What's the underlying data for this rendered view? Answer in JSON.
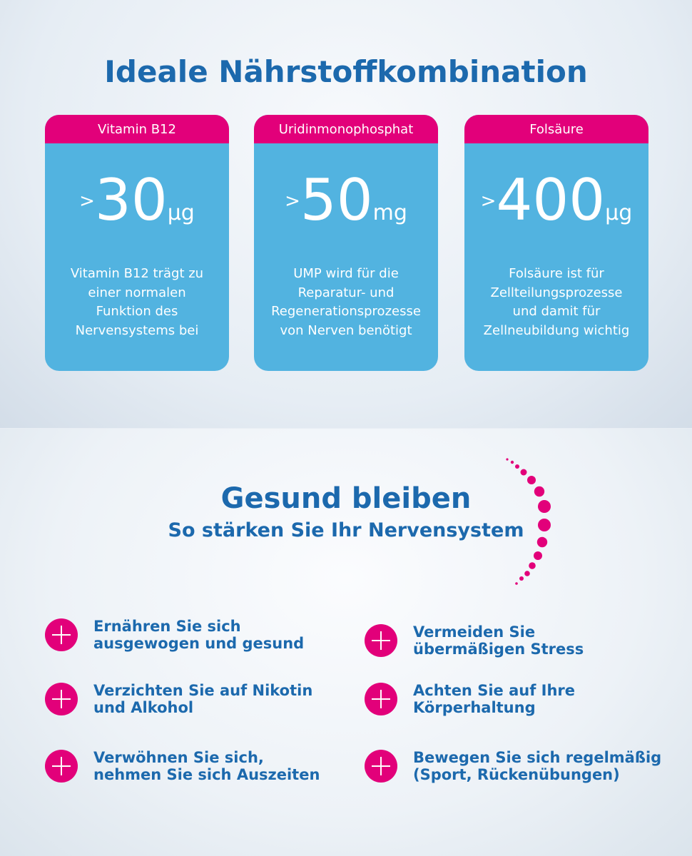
{
  "section1": {
    "title": "Ideale Nährstoffkombination",
    "cards": [
      {
        "header": "Vitamin B12",
        "prefix": ">",
        "value": "30",
        "unit": "µg",
        "desc": "Vitamin B12 trägt zu einer normalen Funktion des Nervensystems bei"
      },
      {
        "header": "Uridinmonophosphat",
        "prefix": ">",
        "value": "50",
        "unit": "mg",
        "desc": "UMP wird für die Reparatur- und Regenerationsprozesse von Nerven benötigt"
      },
      {
        "header": "Folsäure",
        "prefix": ">",
        "value": "400",
        "unit": "µg",
        "desc": "Folsäure ist für Zellteilungsprozesse und damit für Zellneubildung wichtig"
      }
    ]
  },
  "section2": {
    "title": "Gesund bleiben",
    "subtitle": "So stärken Sie Ihr Nervensystem",
    "tips": [
      "Ernähren Sie sich ausgewogen und gesund",
      "Vermeiden Sie übermäßigen Stress",
      "Verzichten Sie auf Nikotin und Alkohol",
      "Achten Sie auf Ihre Körperhaltung",
      "Verwöhnen Sie sich, nehmen Sie sich Auszeiten",
      "Bewegen Sie sich regelmäßig (Sport, Rückenübungen)"
    ]
  },
  "colors": {
    "accent": "#e2007a",
    "card": "#52b3e0",
    "title": "#1c69ad"
  }
}
